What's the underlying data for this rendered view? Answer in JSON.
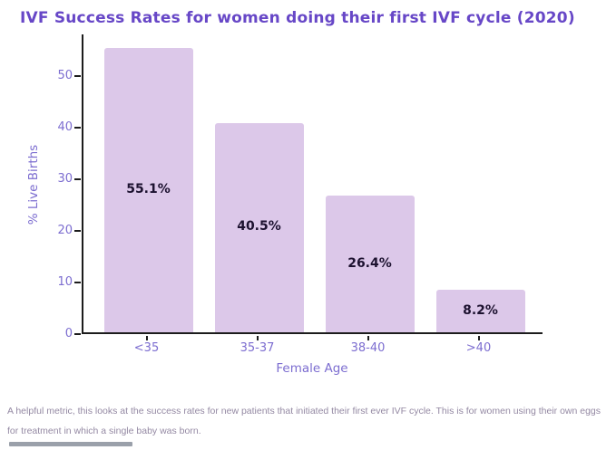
{
  "title": "IVF Success Rates for women doing their first IVF cycle (2020)",
  "chart_data": {
    "type": "bar",
    "categories": [
      "<35",
      "35-37",
      "38-40",
      ">40"
    ],
    "values": [
      55.1,
      40.5,
      26.4,
      8.2
    ],
    "bar_labels": [
      "55.1%",
      "40.5%",
      "26.4%",
      "8.2%"
    ],
    "title": "IVF Success Rates for women doing their first IVF cycle (2020)",
    "xlabel": "Female Age",
    "ylabel": "% Live Births",
    "ylim": [
      0,
      58
    ],
    "yticks": [
      0,
      10,
      20,
      30,
      40,
      50
    ],
    "grid": false,
    "legend_position": "none"
  },
  "footer": {
    "note": "A helpful metric, this looks at the success rates for new patients that initiated their first ever IVF cycle. This is for women using their own eggs for treatment in which a single baby was born."
  },
  "colors": {
    "title": "#6747c7",
    "axis_text": "#7c6dd0",
    "bar_fill": "#dcc8e9",
    "value_label": "#1d1230",
    "spine": "#1c1c1c",
    "footer_text": "#9489a3",
    "scrollbar": "#9aa0aa"
  }
}
